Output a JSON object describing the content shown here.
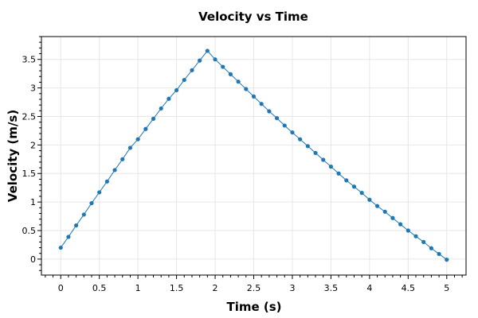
{
  "chart_data": {
    "type": "line",
    "title": "Velocity vs Time",
    "xlabel": "Time (s)",
    "ylabel": "Velocity (m/s)",
    "xlim": [
      -0.25,
      5.25
    ],
    "ylim": [
      -0.28,
      3.9
    ],
    "xticks": [
      "0",
      "0.5",
      "1",
      "1.5",
      "2",
      "2.5",
      "3",
      "3.5",
      "4",
      "4.5",
      "5"
    ],
    "yticks": [
      "0",
      "0.5",
      "1",
      "1.5",
      "2",
      "2.5",
      "3",
      "3.5"
    ],
    "grid": true,
    "legend": "none",
    "series": [
      {
        "color": "#1f77b4",
        "x": [
          0,
          0.1,
          0.2,
          0.3,
          0.4,
          0.5,
          0.6,
          0.7,
          0.8,
          0.9,
          1.0,
          1.1,
          1.2,
          1.3,
          1.4,
          1.5,
          1.6,
          1.7,
          1.8,
          1.9,
          2.0,
          2.1,
          2.2,
          2.3,
          2.4,
          2.5,
          2.6,
          2.7,
          2.8,
          2.9,
          3.0,
          3.1,
          3.2,
          3.3,
          3.4,
          3.5,
          3.6,
          3.7,
          3.8,
          3.9,
          4.0,
          4.1,
          4.2,
          4.3,
          4.4,
          4.5,
          4.6,
          4.7,
          4.8,
          4.9,
          5.0
        ],
        "y": [
          0.2,
          0.39,
          0.59,
          0.78,
          0.98,
          1.17,
          1.36,
          1.56,
          1.75,
          1.95,
          2.1,
          2.28,
          2.46,
          2.64,
          2.81,
          2.96,
          3.14,
          3.31,
          3.48,
          3.65,
          3.5,
          3.37,
          3.24,
          3.11,
          2.98,
          2.85,
          2.72,
          2.59,
          2.47,
          2.34,
          2.22,
          2.1,
          1.98,
          1.86,
          1.74,
          1.62,
          1.5,
          1.38,
          1.27,
          1.16,
          1.04,
          0.93,
          0.83,
          0.72,
          0.61,
          0.5,
          0.4,
          0.3,
          0.19,
          0.09,
          -0.01
        ]
      }
    ]
  }
}
